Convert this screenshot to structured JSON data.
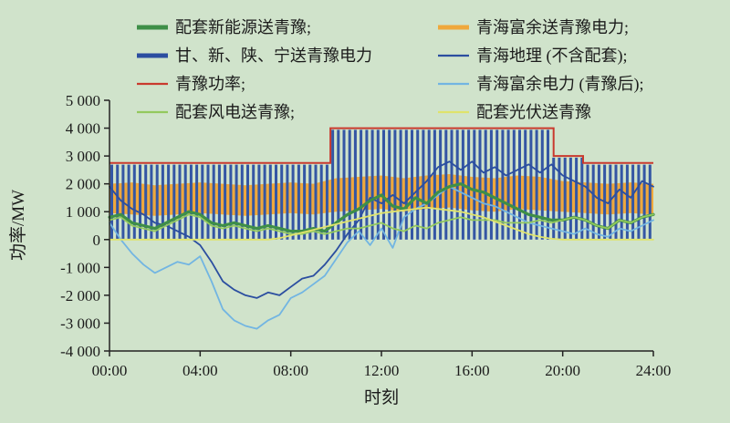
{
  "figure": {
    "background": "#d0e3cb",
    "text_color": "#1b1b1b"
  },
  "legend": {
    "items": [
      {
        "label": "配套新能源送青豫;",
        "color": "#3e8f47",
        "thick": true,
        "col": 0,
        "row": 0
      },
      {
        "label": "甘、新、陕、宁送青豫电力",
        "color": "#2b4ea0",
        "thick": true,
        "col": 0,
        "row": 1
      },
      {
        "label": "青豫功率;",
        "color": "#c93a2e",
        "thick": false,
        "col": 0,
        "row": 2
      },
      {
        "label": "配套风电送青豫;",
        "color": "#93c95e",
        "thick": false,
        "col": 0,
        "row": 3
      },
      {
        "label": "青海富余送青豫电力;",
        "color": "#efa83c",
        "thick": true,
        "col": 1,
        "row": 0
      },
      {
        "label": "青海地理 (不含配套);",
        "color": "#2b4ea0",
        "thick": false,
        "col": 1,
        "row": 1
      },
      {
        "label": "青海富余电力 (青豫后);",
        "color": "#72b5e2",
        "thick": false,
        "col": 1,
        "row": 2
      },
      {
        "label": "配套光伏送青豫",
        "color": "#dfe36b",
        "thick": false,
        "col": 1,
        "row": 3
      }
    ]
  },
  "chart_data": {
    "type": "composite (stacked hatched bars + band + lines + step line)",
    "title": "",
    "xlabel": "时刻",
    "ylabel": "功率/MW",
    "xlim": [
      0,
      24
    ],
    "ylim": [
      -4000,
      5000
    ],
    "grid": false,
    "x_ticks": [
      {
        "t": 0,
        "label": "00:00"
      },
      {
        "t": 4,
        "label": "04:00"
      },
      {
        "t": 8,
        "label": "08:00"
      },
      {
        "t": 12,
        "label": "12:00"
      },
      {
        "t": 16,
        "label": "16:00"
      },
      {
        "t": 20,
        "label": "20:00"
      },
      {
        "t": 24,
        "label": "24:00"
      }
    ],
    "y_ticks": [
      {
        "v": 5000,
        "label": "5 000"
      },
      {
        "v": 4000,
        "label": "4 000"
      },
      {
        "v": 3000,
        "label": "3 000"
      },
      {
        "v": 2000,
        "label": "2 000"
      },
      {
        "v": 1000,
        "label": "1 000"
      },
      {
        "v": 0,
        "label": "0"
      },
      {
        "v": -1000,
        "label": "-1 000"
      },
      {
        "v": -2000,
        "label": "-2 000"
      },
      {
        "v": -3000,
        "label": "-3 000"
      },
      {
        "v": -4000,
        "label": "-4 000"
      }
    ],
    "bars": {
      "name": "甘、新、陕、宁送青豫电力",
      "color": "#3456a4",
      "breaks": [
        [
          0,
          2750
        ],
        [
          9.75,
          4000
        ],
        [
          19.6,
          3000
        ],
        [
          20.9,
          2750
        ]
      ]
    },
    "band": {
      "name": "青海富余送青豫电力",
      "color": "#efa83c",
      "x_step": 1,
      "low": [
        950,
        900,
        850,
        900,
        950,
        900,
        850,
        900,
        950,
        900,
        1000,
        1050,
        1100,
        1000,
        1100,
        1150,
        1050,
        1000,
        1100,
        1050,
        1000,
        950,
        900,
        950,
        900
      ],
      "high": [
        2000,
        2050,
        1950,
        2000,
        2050,
        2000,
        1950,
        2000,
        2050,
        2000,
        2200,
        2250,
        2300,
        2200,
        2300,
        2350,
        2250,
        2200,
        2300,
        2250,
        2100,
        2050,
        2000,
        2050,
        2000
      ]
    },
    "red_step": {
      "name": "青豫功率",
      "color": "#c93a2e",
      "breaks": [
        [
          0,
          2750
        ],
        [
          9.75,
          4000
        ],
        [
          19.6,
          3000
        ],
        [
          20.9,
          2750
        ]
      ]
    },
    "series": [
      {
        "name": "青海地理 (不含配套)",
        "color": "#2b4ea0",
        "width": 1.8,
        "x_step": 0.5,
        "values": [
          1900,
          1400,
          1100,
          900,
          600,
          500,
          300,
          100,
          -200,
          -800,
          -1500,
          -1800,
          -2000,
          -2100,
          -1900,
          -2000,
          -1700,
          -1400,
          -1300,
          -900,
          -400,
          200,
          700,
          1500,
          1300,
          1600,
          1300,
          1700,
          2100,
          2600,
          2800,
          2500,
          2800,
          2400,
          2600,
          2300,
          2500,
          2700,
          2400,
          2700,
          2300,
          2100,
          1900,
          1500,
          1300,
          1800,
          1500,
          2100,
          1900
        ]
      },
      {
        "name": "青海富余电力 (青豫后)",
        "color": "#72b5e2",
        "width": 1.8,
        "x_step": 0.5,
        "values": [
          600,
          0,
          -500,
          -900,
          -1200,
          -1000,
          -800,
          -900,
          -600,
          -1500,
          -2500,
          -2900,
          -3100,
          -3200,
          -2900,
          -2700,
          -2100,
          -1900,
          -1600,
          -1300,
          -700,
          -100,
          300,
          -200,
          400,
          -300,
          800,
          1100,
          1300,
          1600,
          1900,
          1700,
          1500,
          1300,
          1200,
          1000,
          800,
          600,
          500,
          400,
          300,
          200,
          400,
          200,
          100,
          400,
          300,
          500,
          700
        ]
      },
      {
        "name": "配套新能源送青豫",
        "color": "#3e8f47",
        "width": 3.2,
        "x_step": 0.5,
        "values": [
          800,
          900,
          600,
          500,
          400,
          600,
          800,
          1000,
          900,
          600,
          500,
          600,
          500,
          400,
          500,
          400,
          300,
          300,
          400,
          300,
          600,
          900,
          1100,
          1400,
          1600,
          1200,
          1100,
          1500,
          1300,
          1700,
          1900,
          2000,
          1800,
          1700,
          1500,
          1300,
          1100,
          900,
          800,
          700,
          700,
          800,
          700,
          500,
          400,
          700,
          600,
          800,
          900
        ]
      },
      {
        "name": "配套风电送青豫",
        "color": "#93c95e",
        "width": 1.8,
        "x_step": 0.5,
        "values": [
          700,
          800,
          500,
          400,
          300,
          500,
          700,
          900,
          800,
          500,
          400,
          500,
          400,
          300,
          400,
          300,
          200,
          200,
          300,
          200,
          300,
          400,
          400,
          500,
          600,
          400,
          300,
          500,
          400,
          600,
          700,
          800,
          700,
          700,
          700,
          600,
          600,
          600,
          700,
          600,
          700,
          800,
          700,
          500,
          400,
          700,
          600,
          800,
          900
        ]
      },
      {
        "name": "配套光伏送青豫",
        "color": "#dfe36b",
        "width": 1.8,
        "x_step": 0.5,
        "values": [
          0,
          0,
          0,
          0,
          0,
          0,
          0,
          0,
          0,
          0,
          0,
          0,
          0,
          0,
          0,
          50,
          150,
          250,
          350,
          450,
          550,
          650,
          750,
          850,
          950,
          1000,
          1050,
          1100,
          1150,
          1100,
          1050,
          1000,
          900,
          800,
          650,
          500,
          350,
          200,
          100,
          30,
          0,
          0,
          0,
          0,
          0,
          0,
          0,
          0,
          0
        ]
      }
    ]
  }
}
